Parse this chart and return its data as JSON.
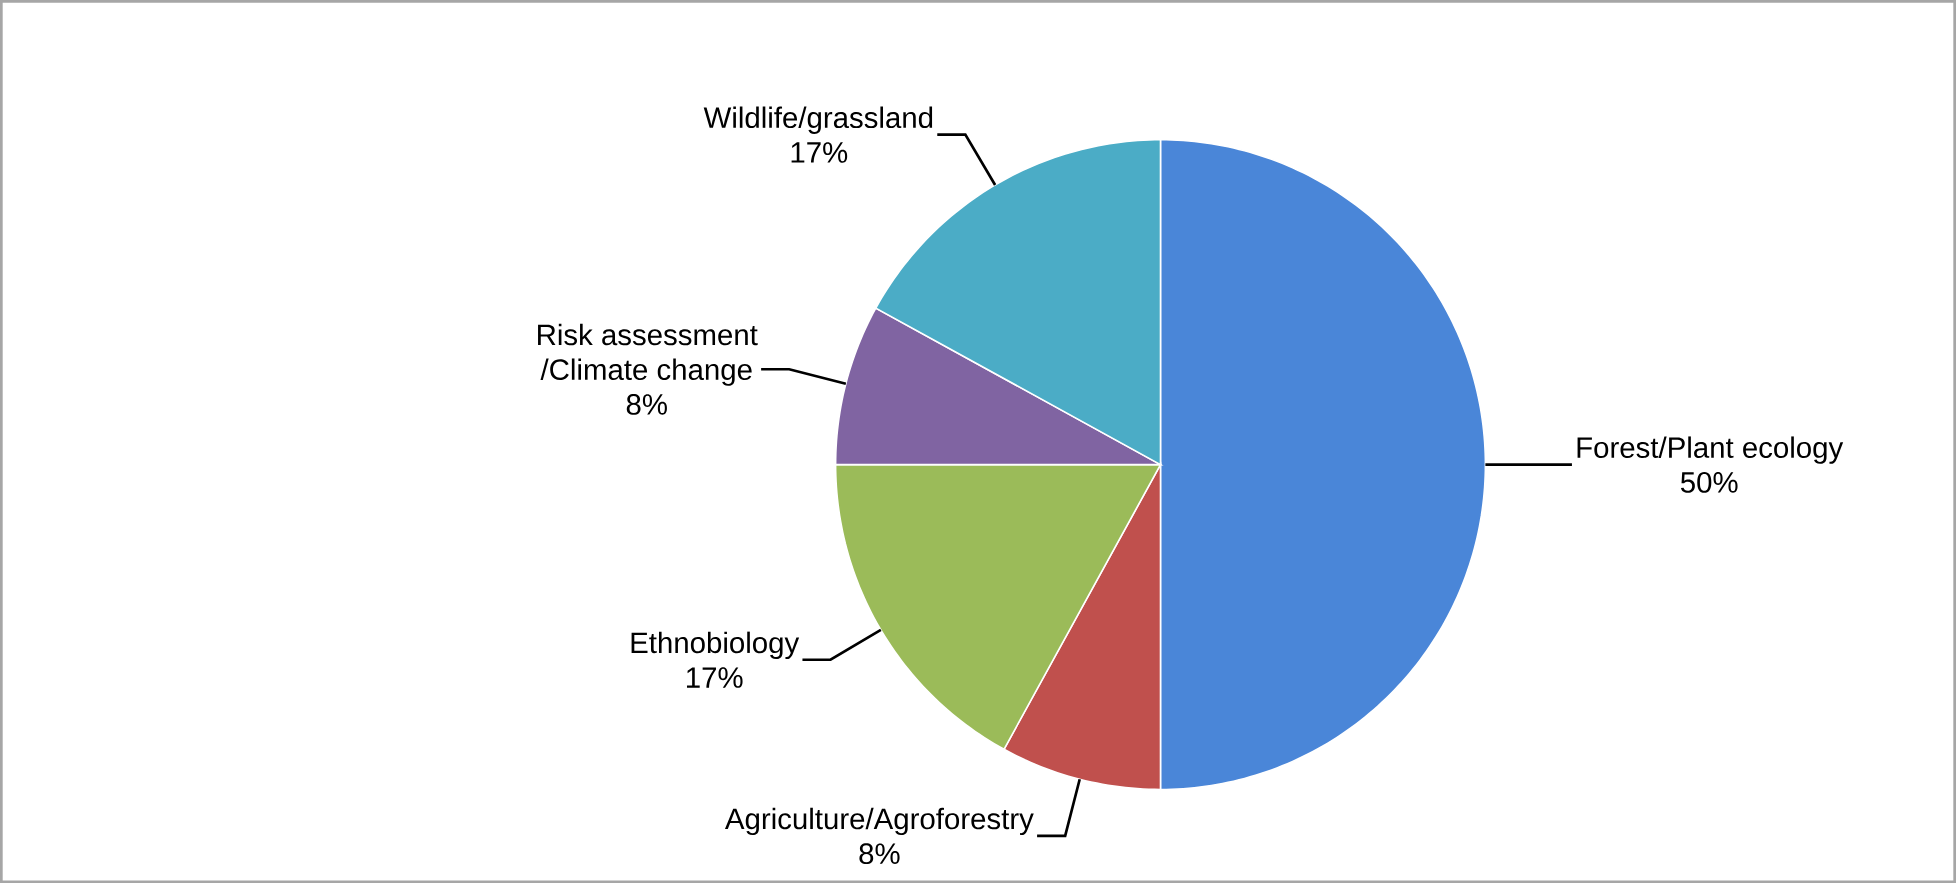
{
  "chart_data": {
    "type": "pie",
    "categories": [
      "Forest/Plant ecology",
      "Agriculture/Agroforestry",
      "Ethnobiology",
      "Risk assessment /Climate change",
      "Wildlife/grassland"
    ],
    "values": [
      50,
      8,
      17,
      8,
      17
    ],
    "colors": [
      "#4a86d8",
      "#c0504d",
      "#9bbb59",
      "#8064a2",
      "#4bacc6"
    ],
    "value_labels": [
      "50%",
      "8%",
      "17%",
      "8%",
      "17%"
    ]
  }
}
